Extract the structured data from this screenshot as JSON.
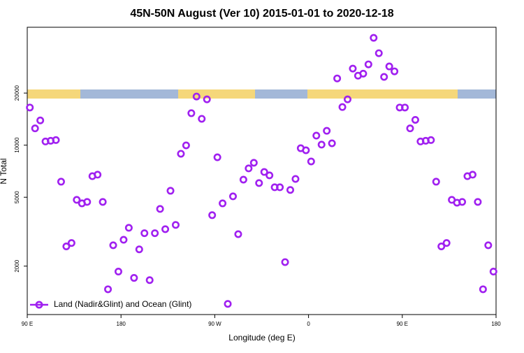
{
  "chart_data": {
    "type": "scatter",
    "title": "45N-50N August (Ver 10)   2015-01-01 to 2020-12-18",
    "x_label": "Longitude (deg E)",
    "y_label": "N Total",
    "xlim": [
      90,
      540
    ],
    "ylim": [
      1050,
      48000
    ],
    "log_y": true,
    "legend": "lower left",
    "xticks": [
      {
        "value": 90,
        "label": "90 E"
      },
      180,
      {
        "value": 270,
        "label": "90 W"
      },
      {
        "value": 360,
        "label": "0"
      },
      {
        "value": 450,
        "label": "90 E"
      },
      {
        "value": 540,
        "label": "180"
      }
    ],
    "yticks": [
      2000,
      5000,
      10000,
      20000
    ],
    "series": [
      {
        "name": "Land (Nadir&Glint) and Ocean (Glint)",
        "color": "#a020f0",
        "x": [
          92.5,
          97.5,
          102.5,
          107.5,
          112.5,
          117.5,
          122.5,
          127.5,
          132.5,
          137.5,
          142.5,
          147.5,
          152.5,
          157.5,
          162.5,
          167.5,
          172.5,
          177.5,
          182.5,
          187.5,
          192.5,
          197.5,
          202.5,
          207.5,
          212.5,
          217.5,
          222.5,
          227.5,
          232.5,
          237.5,
          242.5,
          247.5,
          252.5,
          257.5,
          262.5,
          267.5,
          272.5,
          277.5,
          282.5,
          287.5,
          292.5,
          297.5,
          302.5,
          307.5,
          312.5,
          317.5,
          322.5,
          327.5,
          332.5,
          337.5,
          342.5,
          347.5,
          352.5,
          357.5,
          362.5,
          367.5,
          372.5,
          377.5,
          382.5,
          387.5,
          392.5,
          397.5,
          402.5,
          407.5,
          412.5,
          417.5,
          422.5,
          427.5,
          432.5,
          437.5,
          442.5,
          447.5,
          452.5,
          457.5,
          462.5,
          467.5,
          472.5,
          477.5,
          482.5,
          487.5,
          492.5,
          497.5,
          502.5,
          507.5,
          512.5,
          517.5,
          522.5,
          527.5,
          532.5,
          537.5
        ],
        "values": [
          16500,
          12500,
          13900,
          10500,
          10600,
          10700,
          6150,
          2600,
          2720,
          4830,
          4610,
          4700,
          6620,
          6750,
          4700,
          1470,
          2640,
          1860,
          2840,
          3330,
          1710,
          2500,
          3100,
          1660,
          3100,
          4280,
          3270,
          5450,
          3460,
          8920,
          9970,
          15300,
          19100,
          14200,
          18400,
          3940,
          8510,
          4610,
          1210,
          5060,
          3060,
          6320,
          7340,
          7910,
          6040,
          7000,
          6690,
          5710,
          5710,
          2110,
          5510,
          6380,
          9600,
          9340,
          8050,
          11350,
          10070,
          12100,
          10250,
          24300,
          16600,
          18400,
          27700,
          25200,
          25900,
          29300,
          41700,
          34000,
          24800,
          28500,
          26700,
          16500,
          16500,
          12500,
          14000,
          10500,
          10600,
          10700,
          6150,
          2600,
          2720,
          4830,
          4650,
          4700,
          6620,
          6750,
          4700,
          1470,
          2640,
          1860
        ]
      }
    ]
  }
}
